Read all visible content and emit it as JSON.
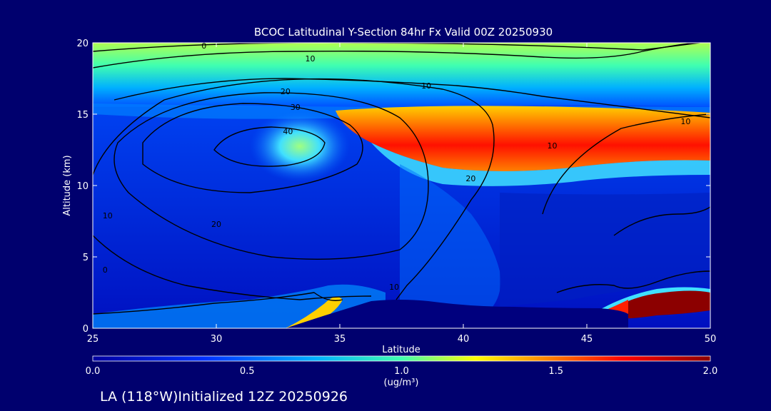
{
  "chart_data": {
    "type": "heatmap",
    "title": "BCOC Latitudinal Y-Section 84hr  Fx Valid 00Z 20250930",
    "xlabel": "Latitude",
    "ylabel": "Altitude (km)",
    "xlim": [
      25,
      50
    ],
    "ylim": [
      0,
      20
    ],
    "x_ticks": [
      "25",
      "30",
      "35",
      "40",
      "45",
      "50"
    ],
    "y_ticks": [
      "0",
      "5",
      "10",
      "15",
      "20"
    ],
    "colorbar": {
      "label": "(ug/m³)",
      "range": [
        0,
        2
      ],
      "ticks": [
        "0.0",
        "0.5",
        "1.0",
        "1.5",
        "2.0"
      ],
      "colors": [
        "#0000a0",
        "#0030ff",
        "#00c0ff",
        "#40ffb0",
        "#ffff00",
        "#ff8000",
        "#ff0000",
        "#8c0000"
      ]
    },
    "filled_field_features": [
      {
        "desc": "upper high band",
        "lat_range": [
          35,
          50
        ],
        "alt_range": [
          11.5,
          15
        ],
        "peak_value": 1.7
      },
      {
        "desc": "upper green-yellow layer",
        "lat_range": [
          25,
          50
        ],
        "alt_range": [
          15.5,
          20
        ],
        "peak_value": 1.1
      },
      {
        "desc": "surface maximum",
        "lat_range": [
          46,
          50
        ],
        "alt_range": [
          0.5,
          2.5
        ],
        "peak_value": 2.0
      },
      {
        "desc": "low level plume",
        "lat_range": [
          31,
          36
        ],
        "alt_range": [
          0,
          2
        ],
        "peak_value": 1.3
      }
    ],
    "contour_labels": [
      "0",
      "10",
      "20",
      "30",
      "40",
      "20",
      "10",
      "20",
      "10",
      "0",
      "10",
      "10",
      "10"
    ]
  },
  "footer": {
    "text": "LA (118°W)Initialized 12Z 20250926"
  }
}
